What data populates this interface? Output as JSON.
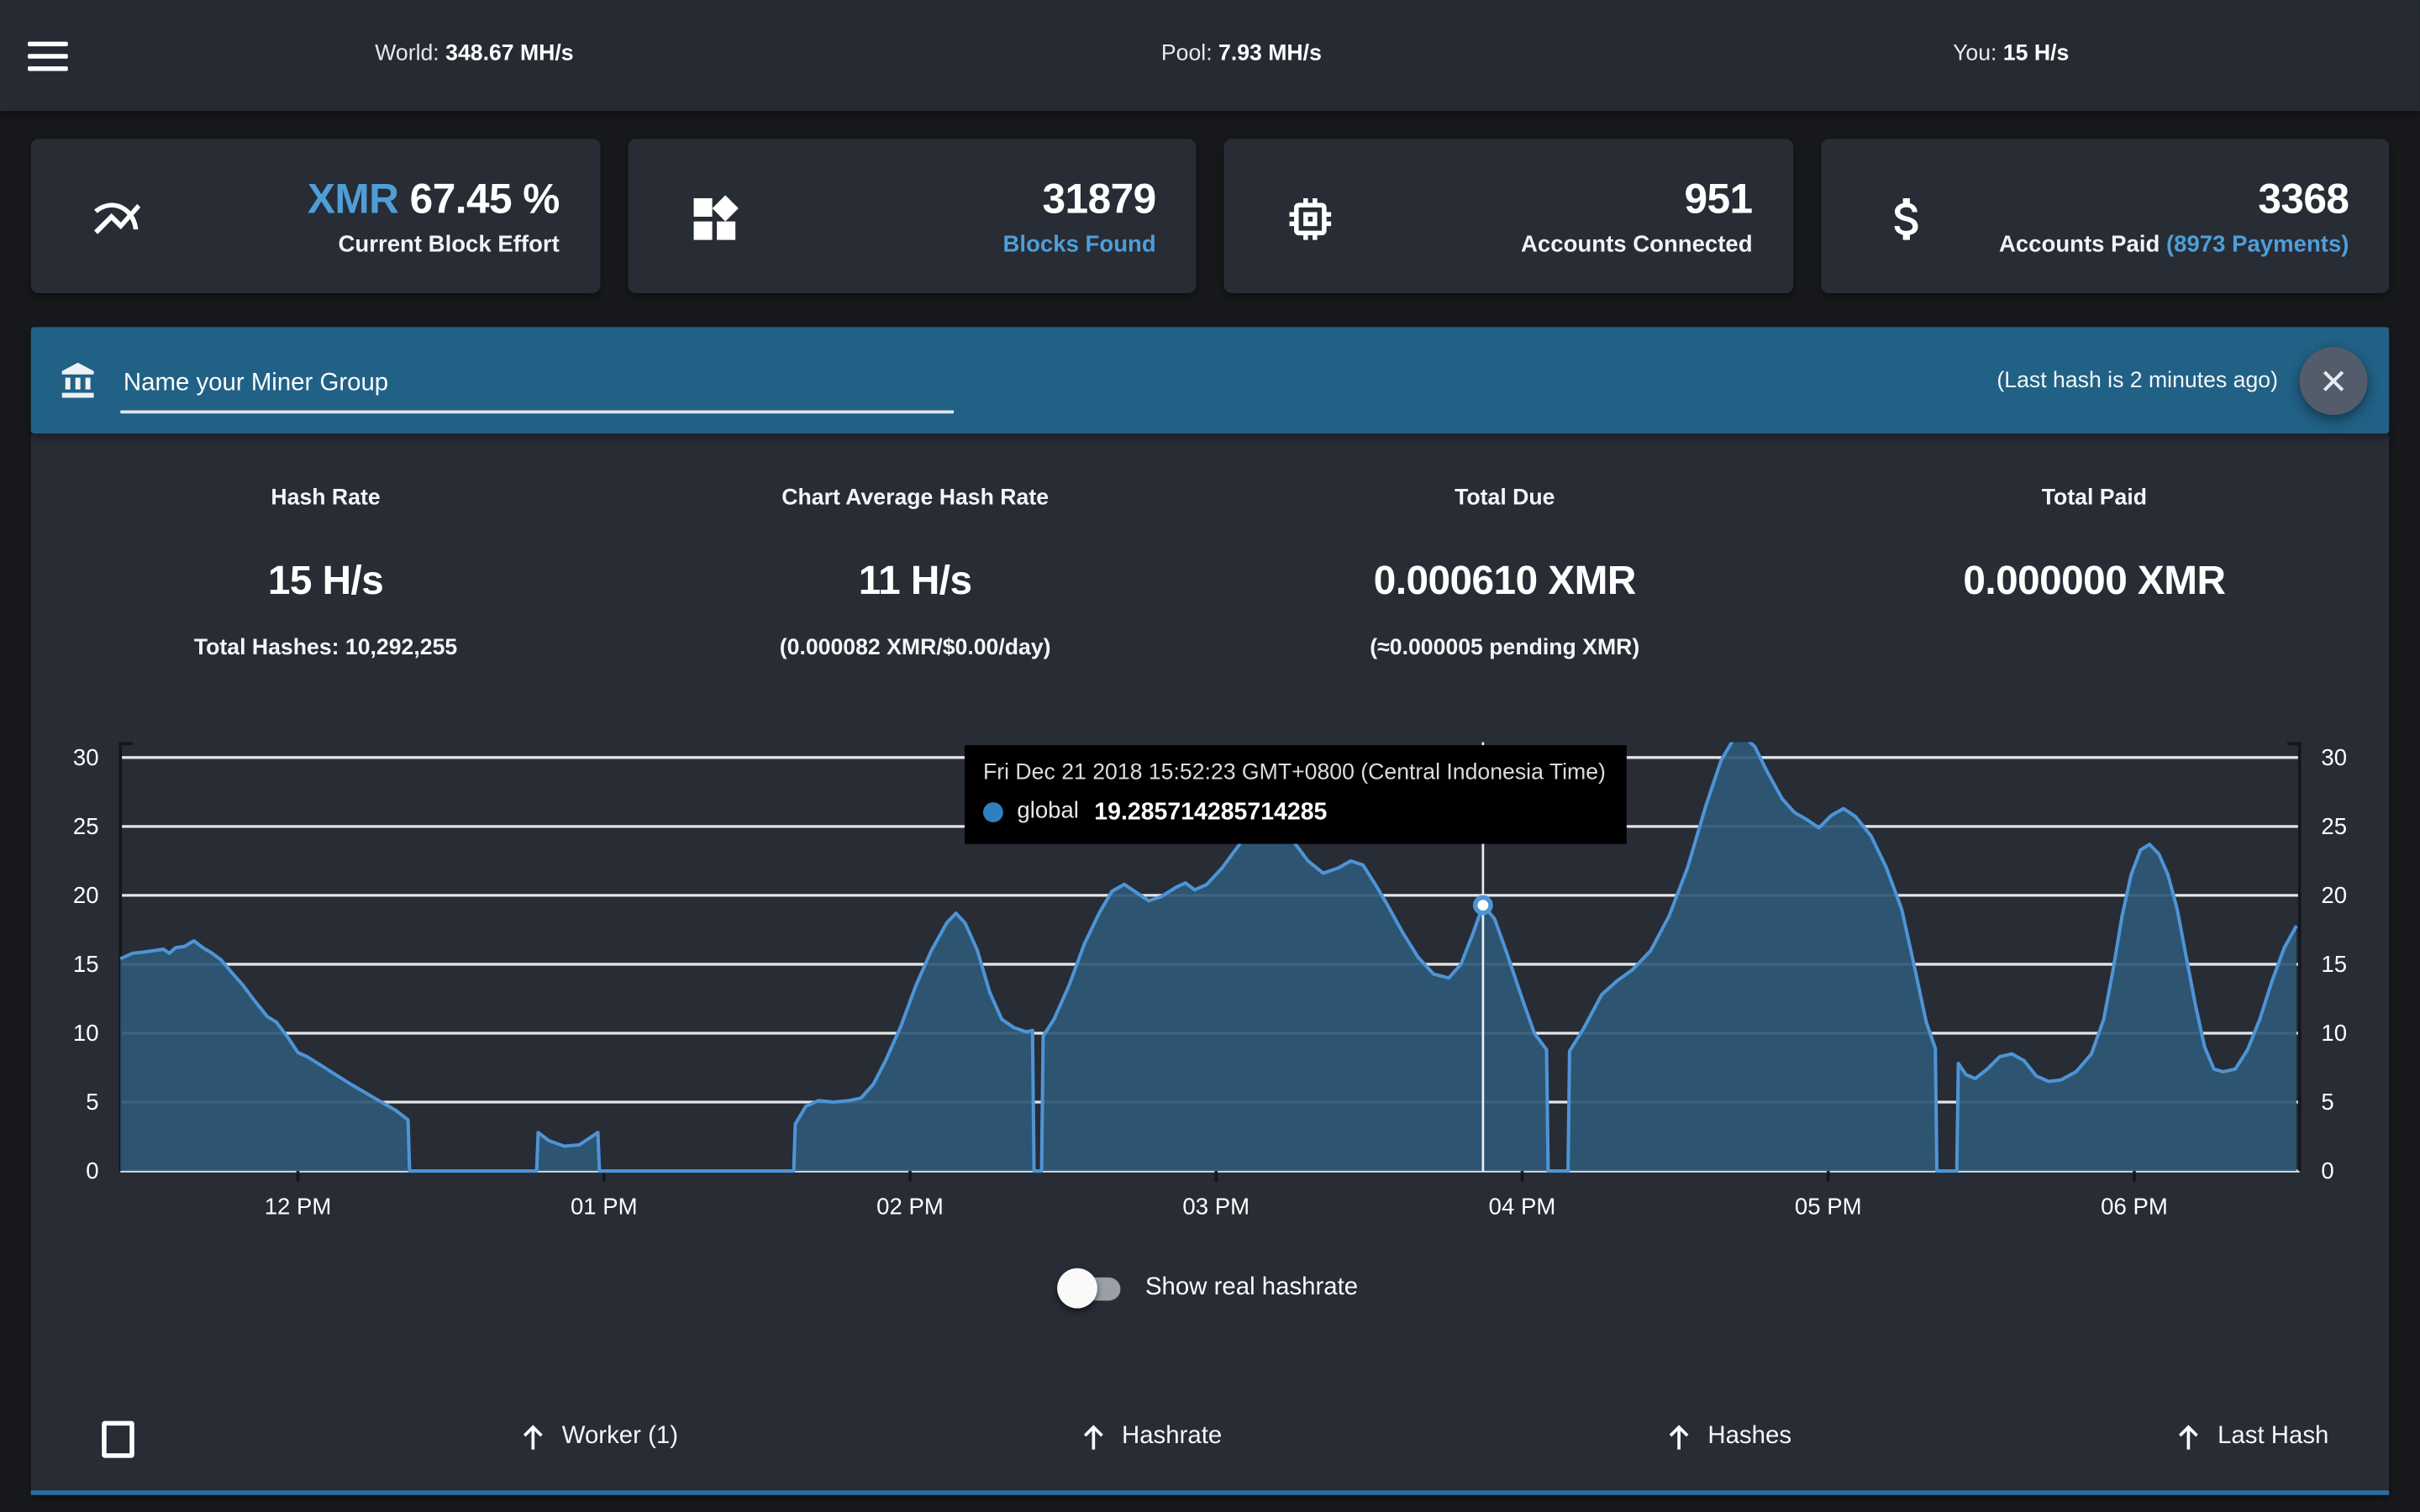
{
  "topbar": {
    "world_label": "World:",
    "world_value": "348.67 MH/s",
    "pool_label": "Pool:",
    "pool_value": "7.93 MH/s",
    "you_label": "You:",
    "you_value": "15 H/s"
  },
  "cards": [
    {
      "icon": "trend-chart-icon",
      "value_prefix": "XMR",
      "value": " 67.45 %",
      "label": "Current Block Effort"
    },
    {
      "icon": "blocks-icon",
      "value": "31879",
      "label": "Blocks Found"
    },
    {
      "icon": "chip-icon",
      "value": "951",
      "label": "Accounts Connected"
    },
    {
      "icon": "dollar-icon",
      "value": "3368",
      "label": "Accounts Paid ",
      "label_link": "(8973 Payments)"
    }
  ],
  "banner": {
    "placeholder": "Name your Miner Group",
    "last_hash": "(Last hash is 2 minutes ago)"
  },
  "stats": [
    {
      "label": "Hash Rate",
      "value": "15 H/s",
      "sub": "Total Hashes: 10,292,255"
    },
    {
      "label": "Chart Average Hash Rate",
      "value": "11 H/s",
      "sub": "(0.000082 XMR/$0.00/day)"
    },
    {
      "label": "Total Due",
      "value": "0.000610 XMR",
      "sub": "(≈0.000005 pending XMR)"
    },
    {
      "label": "Total Paid",
      "value": "0.000000 XMR",
      "sub": ""
    }
  ],
  "chart_data": {
    "type": "area",
    "series_name": "global",
    "ylim": [
      0,
      30
    ],
    "y_ticks": [
      0,
      5,
      10,
      15,
      20,
      25,
      30
    ],
    "x_range": [
      11.42,
      18.54
    ],
    "x_ticks": [
      {
        "t": 12,
        "label": "12 PM"
      },
      {
        "t": 13,
        "label": "01 PM"
      },
      {
        "t": 14,
        "label": "02 PM"
      },
      {
        "t": 15,
        "label": "03 PM"
      },
      {
        "t": 16,
        "label": "04 PM"
      },
      {
        "t": 17,
        "label": "05 PM"
      },
      {
        "t": 18,
        "label": "06 PM"
      }
    ],
    "colors": {
      "fill": "#2e5876",
      "line": "#4e94d6",
      "grid": "rgba(255,255,255,0.88)",
      "axis": "#15171b",
      "crosshair": "rgba(255,255,255,0.9)",
      "marker_ring": "#4e94d6"
    },
    "tooltip": {
      "line1": "Fri Dec 21 2018 15:52:23 GMT+0800 (Central Indonesia Time)",
      "series": "global",
      "value_text": "19.285714285714285",
      "t": 15.872,
      "v": 19.2857
    },
    "points": [
      [
        11.42,
        15.4
      ],
      [
        11.46,
        15.8
      ],
      [
        11.5,
        15.9
      ],
      [
        11.53,
        16.0
      ],
      [
        11.56,
        16.1
      ],
      [
        11.58,
        15.8
      ],
      [
        11.6,
        16.2
      ],
      [
        11.63,
        16.3
      ],
      [
        11.66,
        16.7
      ],
      [
        11.69,
        16.2
      ],
      [
        11.72,
        15.8
      ],
      [
        11.75,
        15.3
      ],
      [
        11.78,
        14.5
      ],
      [
        11.82,
        13.5
      ],
      [
        11.86,
        12.3
      ],
      [
        11.9,
        11.2
      ],
      [
        11.93,
        10.8
      ],
      [
        11.97,
        9.6
      ],
      [
        12.0,
        8.6
      ],
      [
        12.03,
        8.3
      ],
      [
        12.08,
        7.6
      ],
      [
        12.13,
        6.9
      ],
      [
        12.18,
        6.2
      ],
      [
        12.25,
        5.3
      ],
      [
        12.32,
        4.4
      ],
      [
        12.36,
        3.7
      ],
      [
        12.365,
        0
      ],
      [
        12.78,
        0
      ],
      [
        12.785,
        2.8
      ],
      [
        12.82,
        2.2
      ],
      [
        12.87,
        1.8
      ],
      [
        12.92,
        1.9
      ],
      [
        12.96,
        2.5
      ],
      [
        12.98,
        2.8
      ],
      [
        12.985,
        0
      ],
      [
        13.62,
        0
      ],
      [
        13.625,
        3.4
      ],
      [
        13.66,
        4.7
      ],
      [
        13.7,
        5.1
      ],
      [
        13.75,
        5.0
      ],
      [
        13.8,
        5.1
      ],
      [
        13.84,
        5.3
      ],
      [
        13.88,
        6.3
      ],
      [
        13.92,
        8.0
      ],
      [
        13.97,
        10.5
      ],
      [
        14.02,
        13.5
      ],
      [
        14.07,
        16.0
      ],
      [
        14.12,
        18.0
      ],
      [
        14.15,
        18.7
      ],
      [
        14.18,
        18.0
      ],
      [
        14.22,
        16.0
      ],
      [
        14.26,
        13.0
      ],
      [
        14.3,
        11.0
      ],
      [
        14.34,
        10.4
      ],
      [
        14.38,
        10.1
      ],
      [
        14.4,
        10.2
      ],
      [
        14.405,
        0
      ],
      [
        14.43,
        0
      ],
      [
        14.435,
        9.8
      ],
      [
        14.47,
        11.0
      ],
      [
        14.52,
        13.5
      ],
      [
        14.57,
        16.5
      ],
      [
        14.62,
        18.8
      ],
      [
        14.66,
        20.3
      ],
      [
        14.7,
        20.8
      ],
      [
        14.74,
        20.2
      ],
      [
        14.78,
        19.6
      ],
      [
        14.82,
        19.9
      ],
      [
        14.87,
        20.6
      ],
      [
        14.9,
        20.9
      ],
      [
        14.93,
        20.4
      ],
      [
        14.97,
        20.8
      ],
      [
        15.02,
        22.0
      ],
      [
        15.07,
        23.5
      ],
      [
        15.12,
        25.0
      ],
      [
        15.16,
        25.8
      ],
      [
        15.2,
        25.2
      ],
      [
        15.25,
        24.0
      ],
      [
        15.3,
        22.5
      ],
      [
        15.35,
        21.6
      ],
      [
        15.4,
        22.0
      ],
      [
        15.44,
        22.5
      ],
      [
        15.48,
        22.2
      ],
      [
        15.52,
        20.8
      ],
      [
        15.56,
        19.3
      ],
      [
        15.61,
        17.3
      ],
      [
        15.66,
        15.5
      ],
      [
        15.71,
        14.3
      ],
      [
        15.76,
        14.0
      ],
      [
        15.8,
        15.0
      ],
      [
        15.84,
        17.3
      ],
      [
        15.872,
        19.2857
      ],
      [
        15.91,
        18.3
      ],
      [
        15.95,
        15.8
      ],
      [
        16.0,
        12.5
      ],
      [
        16.04,
        10.0
      ],
      [
        16.08,
        8.8
      ],
      [
        16.085,
        0
      ],
      [
        16.15,
        0
      ],
      [
        16.155,
        8.7
      ],
      [
        16.2,
        10.3
      ],
      [
        16.26,
        12.8
      ],
      [
        16.31,
        13.8
      ],
      [
        16.36,
        14.6
      ],
      [
        16.42,
        16.0
      ],
      [
        16.48,
        18.5
      ],
      [
        16.54,
        22.0
      ],
      [
        16.6,
        26.5
      ],
      [
        16.65,
        29.8
      ],
      [
        16.69,
        31.3
      ],
      [
        16.72,
        31.6
      ],
      [
        16.76,
        30.8
      ],
      [
        16.8,
        29.0
      ],
      [
        16.85,
        27.0
      ],
      [
        16.89,
        26.0
      ],
      [
        16.93,
        25.5
      ],
      [
        16.97,
        24.9
      ],
      [
        17.01,
        25.8
      ],
      [
        17.05,
        26.3
      ],
      [
        17.09,
        25.7
      ],
      [
        17.14,
        24.3
      ],
      [
        17.19,
        22.0
      ],
      [
        17.24,
        19.0
      ],
      [
        17.28,
        15.0
      ],
      [
        17.32,
        10.8
      ],
      [
        17.35,
        8.9
      ],
      [
        17.355,
        0
      ],
      [
        17.42,
        0
      ],
      [
        17.425,
        7.8
      ],
      [
        17.45,
        7.0
      ],
      [
        17.48,
        6.7
      ],
      [
        17.52,
        7.4
      ],
      [
        17.56,
        8.3
      ],
      [
        17.6,
        8.5
      ],
      [
        17.64,
        8.0
      ],
      [
        17.68,
        6.9
      ],
      [
        17.72,
        6.5
      ],
      [
        17.76,
        6.6
      ],
      [
        17.81,
        7.2
      ],
      [
        17.86,
        8.5
      ],
      [
        17.9,
        11.0
      ],
      [
        17.93,
        14.5
      ],
      [
        17.96,
        18.5
      ],
      [
        17.99,
        21.5
      ],
      [
        18.02,
        23.3
      ],
      [
        18.05,
        23.7
      ],
      [
        18.08,
        23.0
      ],
      [
        18.11,
        21.5
      ],
      [
        18.14,
        19.0
      ],
      [
        18.17,
        15.5
      ],
      [
        18.2,
        12.0
      ],
      [
        18.23,
        9.0
      ],
      [
        18.26,
        7.4
      ],
      [
        18.29,
        7.2
      ],
      [
        18.33,
        7.4
      ],
      [
        18.37,
        8.8
      ],
      [
        18.41,
        11.0
      ],
      [
        18.45,
        13.8
      ],
      [
        18.49,
        16.2
      ],
      [
        18.53,
        17.8
      ]
    ]
  },
  "toggle": {
    "label": "Show real hashrate",
    "state": "off"
  },
  "table": {
    "columns": [
      "Worker (1)",
      "Hashrate",
      "Hashes",
      "Last Hash"
    ]
  },
  "colors": {
    "accent_blue": "#4e9ed8",
    "banner_blue": "#216186",
    "panel_bg": "#272c35",
    "topbar_bg": "#262b33",
    "page_bg": "#18191c",
    "table_divider_blue": "#2d6d9e"
  }
}
